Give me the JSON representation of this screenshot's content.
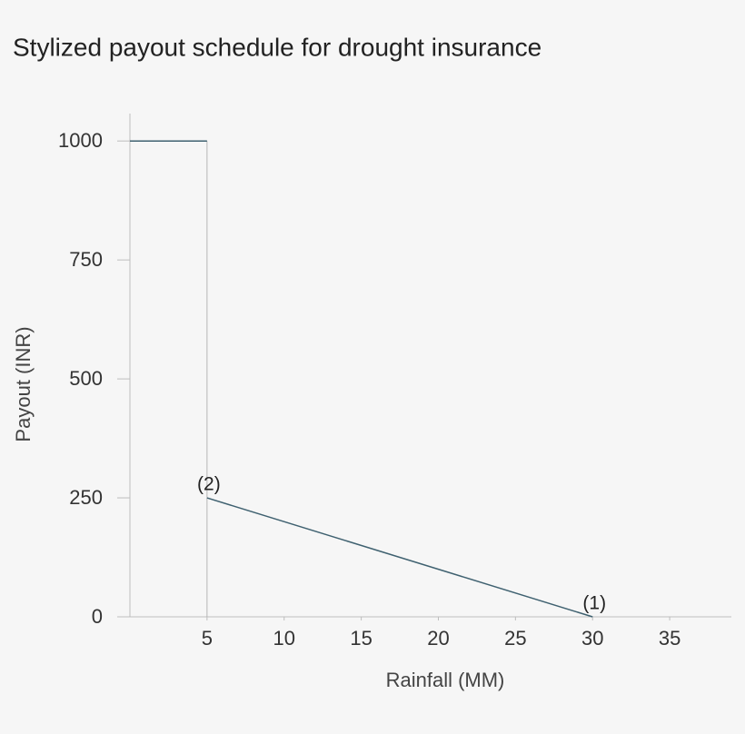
{
  "chart_data": {
    "type": "line",
    "title": "Stylized payout schedule for drought insurance",
    "x_label": "Rainfall (MM)",
    "y_label": "Payout (INR)",
    "xlim": [
      0,
      39
    ],
    "ylim": [
      0,
      1050
    ],
    "xticks": [
      5,
      10,
      15,
      20,
      25,
      30,
      35
    ],
    "yticks": [
      0,
      250,
      500,
      750,
      1000
    ],
    "series": [
      {
        "color": "#3f6170",
        "x": [
          0,
          5,
          null,
          5,
          30
        ],
        "values": [
          1000,
          1000,
          null,
          250,
          0
        ]
      }
    ],
    "reference_line": {
      "color": "#b5b5b5",
      "x": [
        5,
        5
      ],
      "values": [
        0,
        1000
      ]
    },
    "annotations": [
      {
        "text": "(2)",
        "x": 5,
        "y": 250
      },
      {
        "text": "(1)",
        "x": 30,
        "y": 0
      }
    ]
  }
}
